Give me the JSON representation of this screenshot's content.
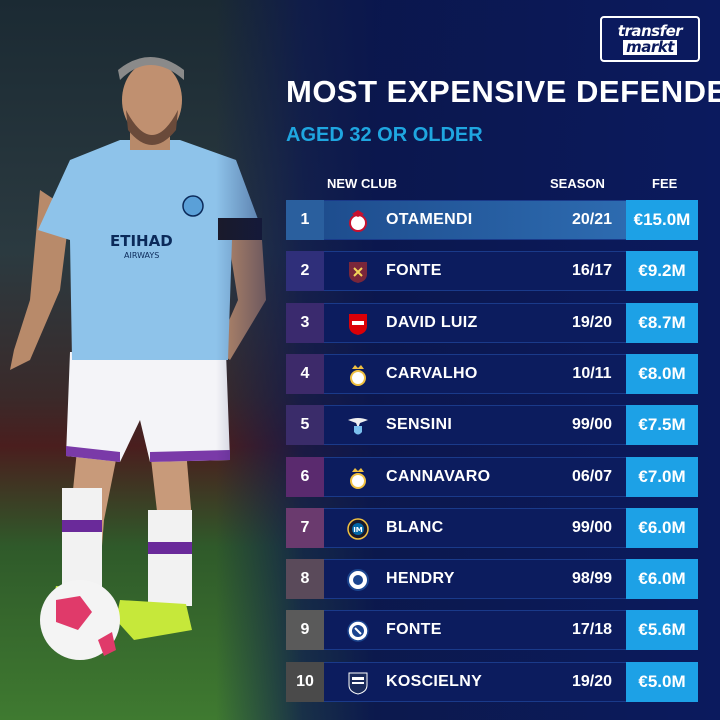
{
  "brand": {
    "line1": "transfer",
    "line2": "markt"
  },
  "title": "MOST EXPENSIVE DEFENDERS",
  "subtitle": "AGED 32 OR OLDER",
  "headers": {
    "club": "NEW CLUB",
    "season": "SEASON",
    "fee": "FEE"
  },
  "colors": {
    "accent": "#1da1e6",
    "background": "#0b1a5e"
  },
  "rows": [
    {
      "rank": "1",
      "crest": "benfica-crest-icon",
      "name": "OTAMENDI",
      "season": "20/21",
      "fee": "€15.0M"
    },
    {
      "rank": "2",
      "crest": "west-ham-crest-icon",
      "name": "FONTE",
      "season": "16/17",
      "fee": "€9.2M"
    },
    {
      "rank": "3",
      "crest": "arsenal-crest-icon",
      "name": "DAVID LUIZ",
      "season": "19/20",
      "fee": "€8.7M"
    },
    {
      "rank": "4",
      "crest": "real-madrid-crest-icon",
      "name": "CARVALHO",
      "season": "10/11",
      "fee": "€8.0M"
    },
    {
      "rank": "5",
      "crest": "lazio-crest-icon",
      "name": "SENSINI",
      "season": "99/00",
      "fee": "€7.5M"
    },
    {
      "rank": "6",
      "crest": "real-madrid-crest-icon",
      "name": "CANNAVARO",
      "season": "06/07",
      "fee": "€7.0M"
    },
    {
      "rank": "7",
      "crest": "inter-crest-icon",
      "name": "BLANC",
      "season": "99/00",
      "fee": "€6.0M"
    },
    {
      "rank": "8",
      "crest": "rangers-crest-icon",
      "name": "HENDRY",
      "season": "98/99",
      "fee": "€6.0M"
    },
    {
      "rank": "9",
      "crest": "lille-crest-icon",
      "name": "FONTE",
      "season": "17/18",
      "fee": "€5.6M"
    },
    {
      "rank": "10",
      "crest": "bordeaux-crest-icon",
      "name": "KOSCIELNY",
      "season": "19/20",
      "fee": "€5.0M"
    }
  ]
}
